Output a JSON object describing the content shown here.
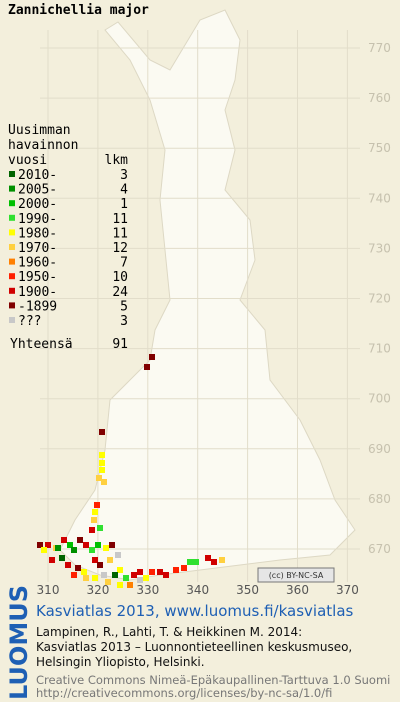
{
  "title": "Zannichellia major",
  "legend": {
    "heading": [
      "Uusimman",
      "havainnon",
      "vuosi"
    ],
    "count_heading": "lkm",
    "entries": [
      {
        "label": "2010-",
        "count": 3,
        "color": "#006400"
      },
      {
        "label": "2005-",
        "count": 4,
        "color": "#009000"
      },
      {
        "label": "2000-",
        "count": 1,
        "color": "#00c000"
      },
      {
        "label": "1990-",
        "count": 11,
        "color": "#30e030"
      },
      {
        "label": "1980-",
        "count": 11,
        "color": "#ffff00"
      },
      {
        "label": "1970-",
        "count": 12,
        "color": "#ffd040"
      },
      {
        "label": "1960-",
        "count": 7,
        "color": "#ff8000"
      },
      {
        "label": "1950-",
        "count": 10,
        "color": "#ff2000"
      },
      {
        "label": "1900-",
        "count": 24,
        "color": "#d00000"
      },
      {
        "label": "-1899",
        "count": 5,
        "color": "#800000"
      },
      {
        "label": "???",
        "count": 3,
        "color": "#c8c8c8"
      }
    ],
    "total_label": "Yhteensä",
    "total": 91
  },
  "map": {
    "y_labels": [
      770,
      760,
      750,
      740,
      730,
      720,
      710,
      700,
      690,
      680,
      670
    ],
    "x_labels": [
      310,
      320,
      330,
      340,
      350,
      360,
      370
    ]
  },
  "badge": "(cc) BY-NC-SA",
  "footer": {
    "heading": "Kasviatlas 2013, www.luomus.fi/kasviatlas",
    "citation": [
      "Lampinen, R., Lahti, T. & Heikkinen M. 2014:",
      "Kasviatlas 2013 – Luonnontieteellinen keskusmuseo,",
      "Helsingin Yliopisto, Helsinki."
    ],
    "license": [
      "Creative Commons Nimeä-Epäkaupallinen-Tarttuva 1.0 Suomi",
      "http://creativecommons.org/licenses/by-nc-sa/1.0/fi"
    ]
  },
  "logo": "LUOMUS"
}
